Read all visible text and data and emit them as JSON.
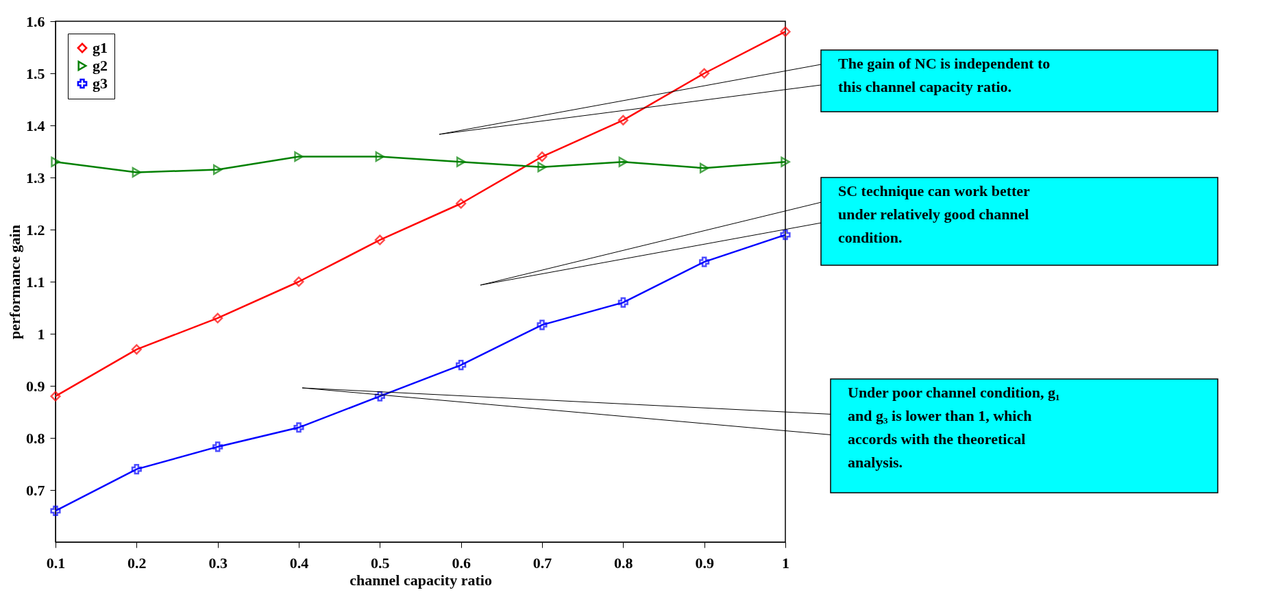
{
  "chart_data": {
    "type": "line",
    "xlabel": "channel capacity ratio",
    "ylabel": "performance gain",
    "x": [
      0.1,
      0.2,
      0.3,
      0.4,
      0.5,
      0.6,
      0.7,
      0.8,
      0.9,
      1
    ],
    "series": [
      {
        "name": "g1",
        "color": "#ff0000",
        "marker": "diamond",
        "values": [
          0.88,
          0.97,
          1.03,
          1.1,
          1.18,
          1.25,
          1.34,
          1.41,
          1.5,
          1.58
        ]
      },
      {
        "name": "g2",
        "color": "#008000",
        "marker": "triangle",
        "values": [
          1.33,
          1.31,
          1.315,
          1.34,
          1.34,
          1.33,
          1.32,
          1.33,
          1.318,
          1.33
        ]
      },
      {
        "name": "g3",
        "color": "#0000ff",
        "marker": "cross",
        "values": [
          0.66,
          0.74,
          0.783,
          0.82,
          0.88,
          0.94,
          1.017,
          1.06,
          1.138,
          1.19
        ]
      }
    ],
    "xlim": [
      0.1,
      1
    ],
    "xticks": [
      0.1,
      0.2,
      0.3,
      0.4,
      0.5,
      0.6,
      0.7,
      0.8,
      0.9,
      1
    ],
    "ylim": [
      0.6,
      1.6
    ],
    "yticks": [
      0.7,
      0.8,
      0.9,
      1,
      1.1,
      1.2,
      1.3,
      1.4,
      1.5,
      1.6
    ],
    "grid": false,
    "legend": "top left",
    "line_style": "solid",
    "annotations": [
      "The gain of NC is independent to this channel capacity ratio.",
      "SC technique can work better under relatively good channel condition.",
      "Under poor channel condition, g₁ and g₃ is lower than 1, which accords with the theoretical analysis."
    ]
  }
}
